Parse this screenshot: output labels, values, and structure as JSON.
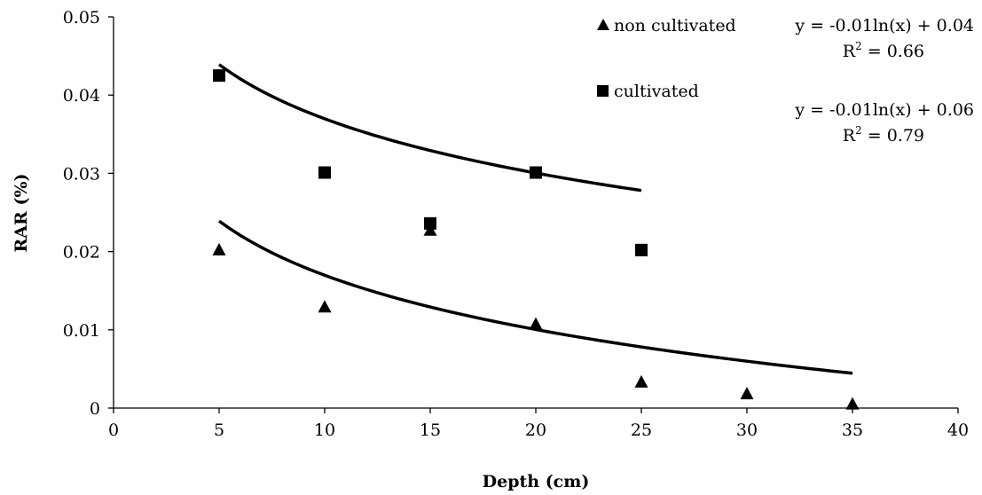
{
  "chart_data": {
    "type": "scatter",
    "xlabel": "Depth (cm)",
    "ylabel": "RAR (%)",
    "xlim": [
      0,
      40
    ],
    "ylim": [
      0,
      0.05
    ],
    "x_ticks": [
      0,
      5,
      10,
      15,
      20,
      25,
      30,
      35,
      40
    ],
    "x_tick_labels": [
      "0",
      "5",
      "10",
      "15",
      "20",
      "25",
      "30",
      "35",
      "40"
    ],
    "y_ticks": [
      0,
      0.01,
      0.02,
      0.03,
      0.04,
      0.05
    ],
    "y_tick_labels": [
      "0",
      "0.01",
      "0.02",
      "0.03",
      "0.04",
      "0.05"
    ],
    "grid": false,
    "legend_position": "top-right",
    "series": [
      {
        "name": "non cultivated",
        "marker": "triangle",
        "color": "#000000",
        "x": [
          5,
          10,
          15,
          20,
          25,
          30,
          35
        ],
        "y": [
          0.0202,
          0.0129,
          0.0227,
          0.0107,
          0.0033,
          0.0018,
          0.0005
        ],
        "trendline": {
          "a": -0.01,
          "b": 0.04,
          "x_range": [
            5,
            35
          ],
          "equation": "y = -0.01ln(x) + 0.04",
          "r2": "0.66"
        }
      },
      {
        "name": "cultivated",
        "marker": "square",
        "color": "#000000",
        "x": [
          5,
          10,
          15,
          20,
          25
        ],
        "y": [
          0.0425,
          0.0301,
          0.0236,
          0.0301,
          0.0202
        ],
        "trendline": {
          "a": -0.01,
          "b": 0.06,
          "x_range": [
            5,
            25
          ],
          "equation": "y = -0.01ln(x) + 0.06",
          "r2": "0.79"
        }
      }
    ]
  }
}
